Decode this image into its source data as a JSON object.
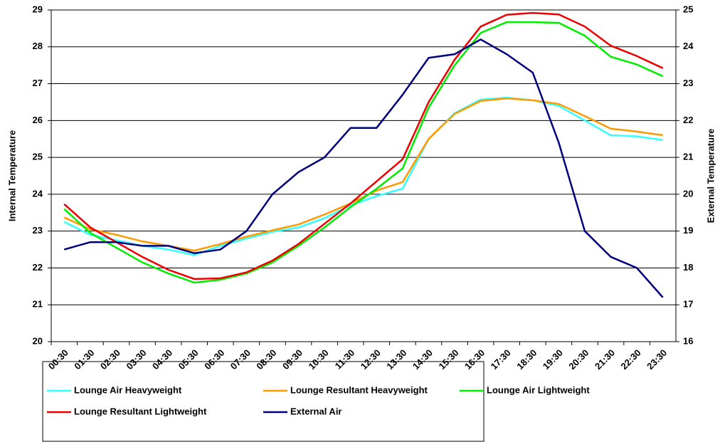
{
  "chart_data": {
    "type": "line",
    "categories": [
      "00:30",
      "01:30",
      "02:30",
      "03:30",
      "04:30",
      "05:30",
      "06:30",
      "07:30",
      "08:30",
      "09:30",
      "10:30",
      "11:30",
      "12:30",
      "13:30",
      "14:30",
      "15:30",
      "16:30",
      "17:30",
      "18:30",
      "19:30",
      "20:30",
      "21:30",
      "22:30",
      "23:30"
    ],
    "y_label": "Internal Temperature",
    "y2_label": "External Temperature",
    "ylim": [
      20,
      29
    ],
    "yticks": [
      20,
      21,
      22,
      23,
      24,
      25,
      26,
      27,
      28,
      29
    ],
    "y2lim": [
      16,
      25
    ],
    "y2ticks": [
      16,
      17,
      18,
      19,
      20,
      21,
      22,
      23,
      24,
      25
    ],
    "grid": true,
    "legend": "bottom",
    "series": [
      {
        "name": "Lounge Air Heavyweight",
        "color": "#33ffff",
        "values": [
          23.25,
          22.9,
          22.75,
          22.6,
          22.5,
          22.35,
          22.6,
          22.8,
          22.98,
          23.1,
          23.35,
          23.7,
          23.95,
          24.15,
          25.5,
          26.2,
          26.57,
          26.62,
          26.55,
          26.4,
          26.0,
          25.6,
          25.57,
          25.47
        ]
      },
      {
        "name": "Lounge Resultant Heavyweight",
        "color": "#ff9900",
        "values": [
          23.37,
          23.05,
          22.9,
          22.72,
          22.6,
          22.47,
          22.65,
          22.85,
          23.02,
          23.18,
          23.45,
          23.75,
          24.1,
          24.33,
          25.5,
          26.18,
          26.53,
          26.6,
          26.55,
          26.45,
          26.12,
          25.78,
          25.7,
          25.6
        ]
      },
      {
        "name": "Lounge Air Lightweight",
        "color": "#00ee00",
        "values": [
          23.6,
          22.95,
          22.55,
          22.15,
          21.85,
          21.6,
          21.68,
          21.85,
          22.15,
          22.6,
          23.1,
          23.65,
          24.15,
          24.7,
          26.35,
          27.5,
          28.38,
          28.67,
          28.67,
          28.65,
          28.3,
          27.73,
          27.52,
          27.2
        ]
      },
      {
        "name": "Lounge Resultant Lightweight",
        "color": "#ee0000",
        "values": [
          23.73,
          23.1,
          22.7,
          22.3,
          21.95,
          21.7,
          21.72,
          21.88,
          22.2,
          22.65,
          23.2,
          23.75,
          24.35,
          24.95,
          26.5,
          27.65,
          28.55,
          28.87,
          28.92,
          28.88,
          28.55,
          28.03,
          27.75,
          27.42
        ]
      },
      {
        "name": "External Air",
        "color": "#000080",
        "axis": "y2",
        "values": [
          18.5,
          18.7,
          18.7,
          18.6,
          18.6,
          18.4,
          18.5,
          19.0,
          20.0,
          20.6,
          21.0,
          21.8,
          21.8,
          22.7,
          23.7,
          23.8,
          24.2,
          23.8,
          23.3,
          21.4,
          19.0,
          18.3,
          18.0,
          17.2
        ]
      }
    ]
  }
}
